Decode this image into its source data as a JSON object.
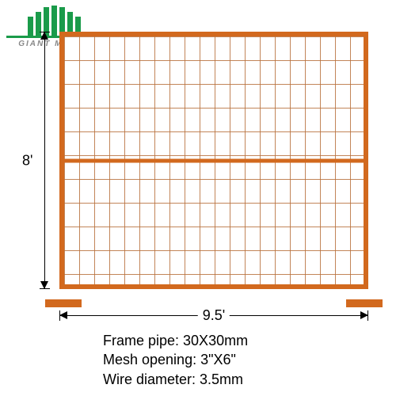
{
  "logo": {
    "brand": "GIANT METAL",
    "accent_color": "#1a9b4a",
    "text_color": "#888888"
  },
  "fence": {
    "frame_color": "#d2691e",
    "mesh_color": "#b8703c",
    "height_label": "8'",
    "width_label": "9.5'",
    "mesh_cols": 20,
    "mesh_rows_per_half": 5
  },
  "specs": {
    "frame_pipe": "Frame pipe: 30X30mm",
    "mesh_opening": "Mesh opening: 3\"X6\"",
    "wire_diameter": "Wire diameter: 3.5mm"
  },
  "style": {
    "background": "#ffffff",
    "dimension_color": "#000000",
    "spec_fontsize": 18,
    "dim_fontsize": 18
  }
}
